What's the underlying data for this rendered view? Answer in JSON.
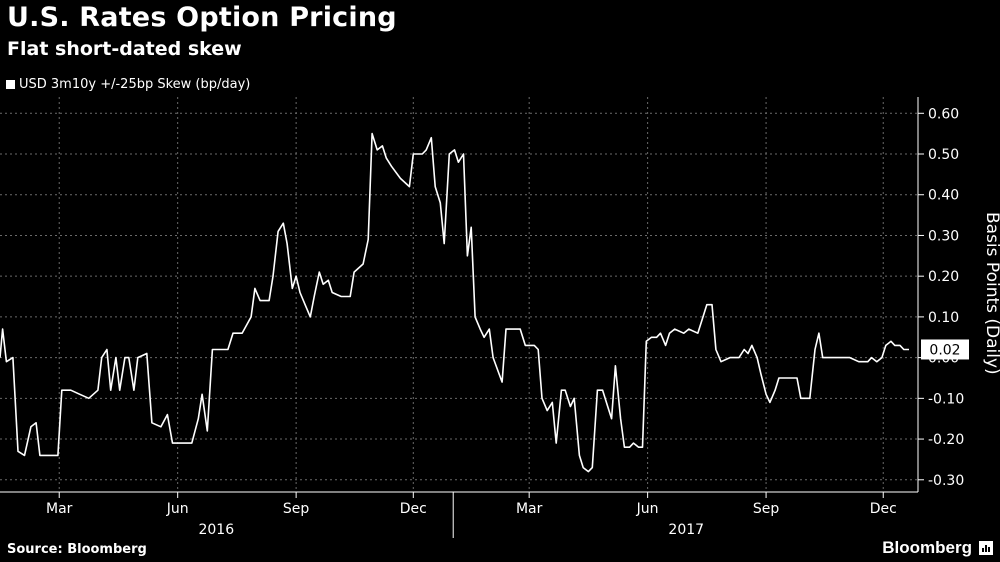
{
  "header": {
    "title": "U.S. Rates Option Pricing",
    "subtitle": "Flat short-dated skew"
  },
  "legend": {
    "label": "USD 3m10y +/-25bp Skew (bp/day)"
  },
  "footer": {
    "source": "Source: Bloomberg",
    "brand": "Bloomberg"
  },
  "axis": {
    "ylabel": "Basis Points (Daily)"
  },
  "colors": {
    "background": "#000000",
    "line": "#ffffff",
    "grid": "#6a6a6a"
  },
  "chart_data": {
    "type": "line",
    "title": "U.S. Rates Option Pricing",
    "subtitle": "Flat short-dated skew",
    "ylabel": "Basis Points (Daily)",
    "ylim": [
      -0.33,
      0.64
    ],
    "yticks": [
      0.6,
      0.5,
      0.4,
      0.3,
      0.2,
      0.1,
      0.0,
      -0.1,
      -0.2,
      -0.3
    ],
    "ytick_labels": [
      "0.60",
      "0.50",
      "0.40",
      "0.30",
      "0.20",
      "0.10",
      "0.00",
      "-0.10",
      "-0.20",
      "-0.30"
    ],
    "xlim": [
      "2016-01-15",
      "2017-12-28"
    ],
    "xticks": [
      {
        "date": "2016-03-01",
        "label": "Mar"
      },
      {
        "date": "2016-06-01",
        "label": "Jun"
      },
      {
        "date": "2016-09-01",
        "label": "Sep"
      },
      {
        "date": "2016-12-01",
        "label": "Dec"
      },
      {
        "date": "2017-03-01",
        "label": "Mar"
      },
      {
        "date": "2017-06-01",
        "label": "Jun"
      },
      {
        "date": "2017-09-01",
        "label": "Sep"
      },
      {
        "date": "2017-12-01",
        "label": "Dec"
      }
    ],
    "year_labels": [
      {
        "date": "2016-07-01",
        "label": "2016"
      },
      {
        "date": "2017-07-01",
        "label": "2017"
      }
    ],
    "year_separators": [
      "2017-01-01"
    ],
    "grid": true,
    "last_value_label": "0.02",
    "series": [
      {
        "name": "USD 3m10y +/-25bp Skew (bp/day)",
        "points": [
          [
            "2016-01-15",
            0.0
          ],
          [
            "2016-01-17",
            0.07
          ],
          [
            "2016-01-20",
            -0.01
          ],
          [
            "2016-01-25",
            0.0
          ],
          [
            "2016-01-29",
            -0.23
          ],
          [
            "2016-02-03",
            -0.24
          ],
          [
            "2016-02-08",
            -0.17
          ],
          [
            "2016-02-12",
            -0.16
          ],
          [
            "2016-02-15",
            -0.24
          ],
          [
            "2016-02-22",
            -0.24
          ],
          [
            "2016-02-29",
            -0.24
          ],
          [
            "2016-03-03",
            -0.08
          ],
          [
            "2016-03-10",
            -0.08
          ],
          [
            "2016-03-17",
            -0.09
          ],
          [
            "2016-03-24",
            -0.1
          ],
          [
            "2016-03-31",
            -0.08
          ],
          [
            "2016-04-03",
            0.0
          ],
          [
            "2016-04-07",
            0.02
          ],
          [
            "2016-04-10",
            -0.08
          ],
          [
            "2016-04-14",
            0.0
          ],
          [
            "2016-04-17",
            -0.08
          ],
          [
            "2016-04-21",
            0.0
          ],
          [
            "2016-04-24",
            0.0
          ],
          [
            "2016-04-28",
            -0.08
          ],
          [
            "2016-05-01",
            0.0
          ],
          [
            "2016-05-08",
            0.01
          ],
          [
            "2016-05-12",
            -0.16
          ],
          [
            "2016-05-19",
            -0.17
          ],
          [
            "2016-05-24",
            -0.14
          ],
          [
            "2016-05-28",
            -0.21
          ],
          [
            "2016-06-05",
            -0.21
          ],
          [
            "2016-06-12",
            -0.21
          ],
          [
            "2016-06-17",
            -0.15
          ],
          [
            "2016-06-20",
            -0.09
          ],
          [
            "2016-06-24",
            -0.18
          ],
          [
            "2016-06-28",
            0.02
          ],
          [
            "2016-07-03",
            0.02
          ],
          [
            "2016-07-10",
            0.02
          ],
          [
            "2016-07-14",
            0.06
          ],
          [
            "2016-07-21",
            0.06
          ],
          [
            "2016-07-28",
            0.1
          ],
          [
            "2016-07-31",
            0.17
          ],
          [
            "2016-08-04",
            0.14
          ],
          [
            "2016-08-11",
            0.14
          ],
          [
            "2016-08-14",
            0.2
          ],
          [
            "2016-08-18",
            0.31
          ],
          [
            "2016-08-22",
            0.33
          ],
          [
            "2016-08-25",
            0.28
          ],
          [
            "2016-08-29",
            0.17
          ],
          [
            "2016-09-01",
            0.2
          ],
          [
            "2016-09-04",
            0.16
          ],
          [
            "2016-09-08",
            0.13
          ],
          [
            "2016-09-12",
            0.1
          ],
          [
            "2016-09-15",
            0.15
          ],
          [
            "2016-09-19",
            0.21
          ],
          [
            "2016-09-22",
            0.18
          ],
          [
            "2016-09-26",
            0.19
          ],
          [
            "2016-09-29",
            0.16
          ],
          [
            "2016-10-06",
            0.15
          ],
          [
            "2016-10-13",
            0.15
          ],
          [
            "2016-10-16",
            0.21
          ],
          [
            "2016-10-23",
            0.23
          ],
          [
            "2016-10-27",
            0.29
          ],
          [
            "2016-10-30",
            0.55
          ],
          [
            "2016-11-03",
            0.51
          ],
          [
            "2016-11-07",
            0.52
          ],
          [
            "2016-11-10",
            0.49
          ],
          [
            "2016-11-14",
            0.47
          ],
          [
            "2016-11-21",
            0.44
          ],
          [
            "2016-11-28",
            0.42
          ],
          [
            "2016-12-01",
            0.5
          ],
          [
            "2016-12-08",
            0.5
          ],
          [
            "2016-12-11",
            0.51
          ],
          [
            "2016-12-15",
            0.54
          ],
          [
            "2016-12-18",
            0.42
          ],
          [
            "2016-12-22",
            0.38
          ],
          [
            "2016-12-25",
            0.28
          ],
          [
            "2016-12-29",
            0.5
          ],
          [
            "2017-01-02",
            0.51
          ],
          [
            "2017-01-05",
            0.48
          ],
          [
            "2017-01-09",
            0.5
          ],
          [
            "2017-01-12",
            0.25
          ],
          [
            "2017-01-15",
            0.32
          ],
          [
            "2017-01-18",
            0.1
          ],
          [
            "2017-01-22",
            0.07
          ],
          [
            "2017-01-25",
            0.05
          ],
          [
            "2017-01-29",
            0.07
          ],
          [
            "2017-02-01",
            0.0
          ],
          [
            "2017-02-08",
            -0.06
          ],
          [
            "2017-02-11",
            0.07
          ],
          [
            "2017-02-15",
            0.07
          ],
          [
            "2017-02-22",
            0.07
          ],
          [
            "2017-02-26",
            0.03
          ],
          [
            "2017-03-05",
            0.03
          ],
          [
            "2017-03-08",
            0.02
          ],
          [
            "2017-03-11",
            -0.1
          ],
          [
            "2017-03-15",
            -0.13
          ],
          [
            "2017-03-19",
            -0.11
          ],
          [
            "2017-03-22",
            -0.21
          ],
          [
            "2017-03-26",
            -0.08
          ],
          [
            "2017-03-29",
            -0.08
          ],
          [
            "2017-04-02",
            -0.12
          ],
          [
            "2017-04-05",
            -0.1
          ],
          [
            "2017-04-09",
            -0.24
          ],
          [
            "2017-04-12",
            -0.27
          ],
          [
            "2017-04-16",
            -0.28
          ],
          [
            "2017-04-19",
            -0.27
          ],
          [
            "2017-04-23",
            -0.08
          ],
          [
            "2017-04-27",
            -0.08
          ],
          [
            "2017-05-01",
            -0.12
          ],
          [
            "2017-05-04",
            -0.15
          ],
          [
            "2017-05-07",
            -0.02
          ],
          [
            "2017-05-11",
            -0.15
          ],
          [
            "2017-05-14",
            -0.22
          ],
          [
            "2017-05-18",
            -0.22
          ],
          [
            "2017-05-21",
            -0.21
          ],
          [
            "2017-05-25",
            -0.22
          ],
          [
            "2017-05-28",
            -0.22
          ],
          [
            "2017-05-31",
            0.04
          ],
          [
            "2017-06-04",
            0.05
          ],
          [
            "2017-06-08",
            0.05
          ],
          [
            "2017-06-11",
            0.06
          ],
          [
            "2017-06-15",
            0.03
          ],
          [
            "2017-06-18",
            0.06
          ],
          [
            "2017-06-22",
            0.07
          ],
          [
            "2017-06-29",
            0.06
          ],
          [
            "2017-07-03",
            0.07
          ],
          [
            "2017-07-10",
            0.06
          ],
          [
            "2017-07-14",
            0.1
          ],
          [
            "2017-07-17",
            0.13
          ],
          [
            "2017-07-21",
            0.13
          ],
          [
            "2017-07-24",
            0.02
          ],
          [
            "2017-07-28",
            -0.01
          ],
          [
            "2017-08-04",
            0.0
          ],
          [
            "2017-08-11",
            0.0
          ],
          [
            "2017-08-15",
            0.02
          ],
          [
            "2017-08-18",
            0.01
          ],
          [
            "2017-08-21",
            0.03
          ],
          [
            "2017-08-25",
            0.0
          ],
          [
            "2017-08-28",
            -0.04
          ],
          [
            "2017-09-01",
            -0.09
          ],
          [
            "2017-09-04",
            -0.11
          ],
          [
            "2017-09-08",
            -0.08
          ],
          [
            "2017-09-11",
            -0.05
          ],
          [
            "2017-09-18",
            -0.05
          ],
          [
            "2017-09-25",
            -0.05
          ],
          [
            "2017-09-28",
            -0.1
          ],
          [
            "2017-10-05",
            -0.1
          ],
          [
            "2017-10-09",
            0.02
          ],
          [
            "2017-10-12",
            0.06
          ],
          [
            "2017-10-15",
            0.0
          ],
          [
            "2017-10-22",
            0.0
          ],
          [
            "2017-10-29",
            0.0
          ],
          [
            "2017-11-05",
            0.0
          ],
          [
            "2017-11-12",
            -0.01
          ],
          [
            "2017-11-19",
            -0.01
          ],
          [
            "2017-11-22",
            0.0
          ],
          [
            "2017-11-26",
            -0.01
          ],
          [
            "2017-11-30",
            0.0
          ],
          [
            "2017-12-03",
            0.03
          ],
          [
            "2017-12-07",
            0.04
          ],
          [
            "2017-12-10",
            0.03
          ],
          [
            "2017-12-14",
            0.03
          ],
          [
            "2017-12-17",
            0.02
          ],
          [
            "2017-12-21",
            0.02
          ]
        ]
      }
    ]
  }
}
